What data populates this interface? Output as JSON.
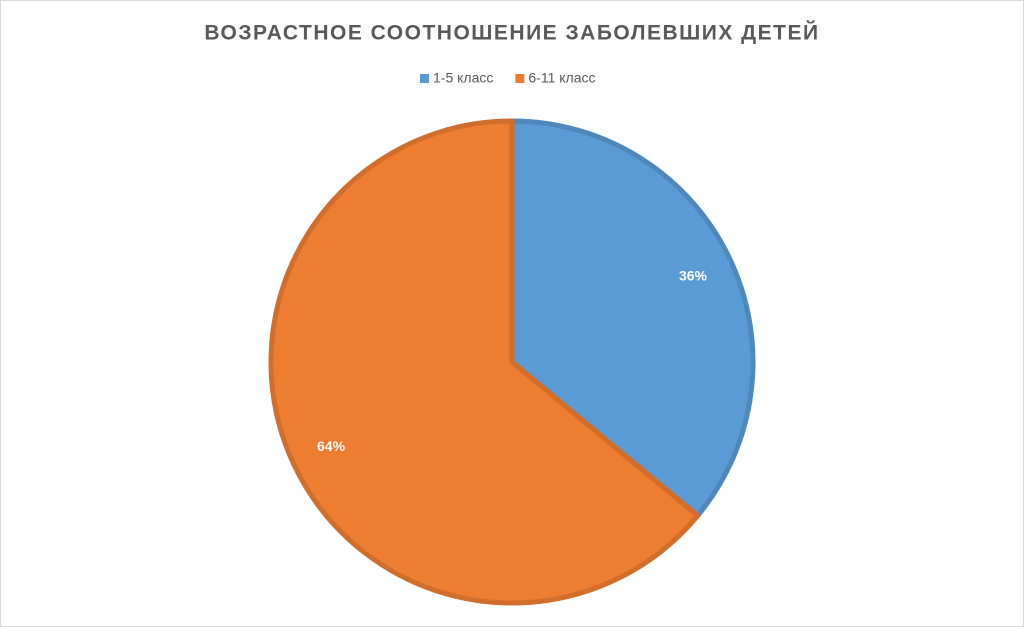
{
  "chart_data": {
    "type": "pie",
    "title": "ВОЗРАСТНОЕ СООТНОШЕНИЕ ЗАБОЛЕВШИХ ДЕТЕЙ",
    "categories": [
      "1-5 класс",
      "6-11 класс"
    ],
    "values": [
      36,
      64
    ],
    "value_labels": [
      "36%",
      "64%"
    ],
    "colors": [
      "#5b9bd5",
      "#ed7d31"
    ],
    "legend": "top"
  }
}
